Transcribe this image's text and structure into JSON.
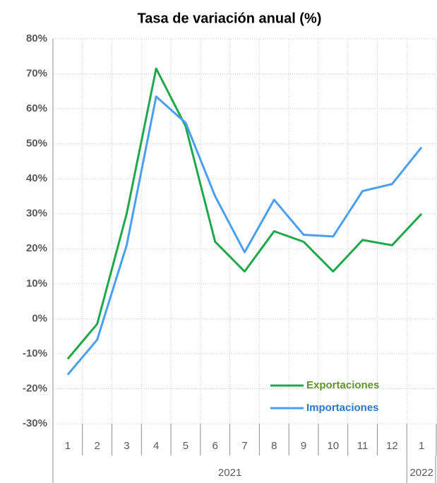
{
  "chart_data": {
    "type": "line",
    "title": "Tasa de variación anual (%)",
    "categories": [
      "1",
      "2",
      "3",
      "4",
      "5",
      "6",
      "7",
      "8",
      "9",
      "10",
      "11",
      "12",
      "1"
    ],
    "groups": [
      {
        "label": "2021",
        "span": 12
      },
      {
        "label": "2022",
        "span": 1
      }
    ],
    "series": [
      {
        "name": "Exportaciones",
        "color": "#1fa84a",
        "label_color": "#5e9428",
        "values": [
          -11.5,
          -1.5,
          30,
          71.5,
          55,
          22,
          13.5,
          25,
          22,
          13.5,
          22.5,
          21,
          30
        ]
      },
      {
        "name": "Importaciones",
        "color": "#4a9ff0",
        "label_color": "#2a78c2",
        "values": [
          -16,
          -6,
          21,
          63.5,
          56,
          35,
          19,
          34,
          24,
          23.5,
          36.5,
          38.5,
          49
        ]
      }
    ],
    "ylim": [
      -30,
      80
    ],
    "yticks": [
      {
        "value": -30,
        "label": "-30%"
      },
      {
        "value": -20,
        "label": "-20%"
      },
      {
        "value": -10,
        "label": "-10%"
      },
      {
        "value": 0,
        "label": "0%"
      },
      {
        "value": 10,
        "label": "10%"
      },
      {
        "value": 20,
        "label": "20%"
      },
      {
        "value": 30,
        "label": "30%"
      },
      {
        "value": 40,
        "label": "40%"
      },
      {
        "value": 50,
        "label": "50%"
      },
      {
        "value": 60,
        "label": "60%"
      },
      {
        "value": 70,
        "label": "70%"
      },
      {
        "value": 80,
        "label": "80%"
      }
    ],
    "grid": true
  }
}
